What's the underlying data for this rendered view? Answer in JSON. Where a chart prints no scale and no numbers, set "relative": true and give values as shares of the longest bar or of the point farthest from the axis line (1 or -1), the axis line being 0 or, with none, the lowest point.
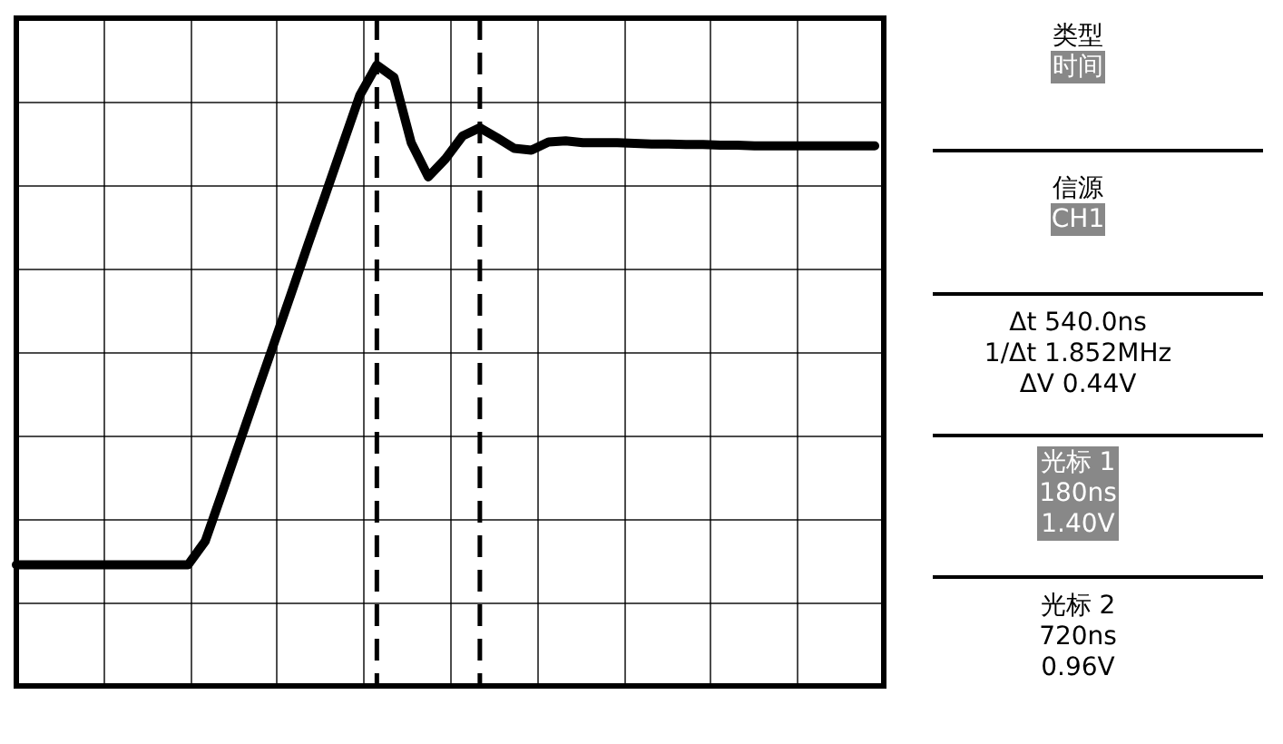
{
  "chart_data": {
    "type": "line",
    "relative": true,
    "color": "#000000",
    "line_style": "solid",
    "grid": true,
    "categories": [
      null,
      null,
      null,
      null,
      null,
      null,
      null,
      null,
      null,
      null,
      null,
      null,
      null,
      null,
      null,
      null,
      null,
      null,
      null,
      null,
      null,
      null,
      null,
      null,
      null,
      null,
      null,
      null,
      null,
      null,
      null,
      null,
      null,
      null,
      null,
      null,
      null,
      null,
      null,
      null,
      null,
      null,
      null,
      null,
      null,
      null,
      null,
      null,
      null,
      null,
      null
    ],
    "values": [
      0.195,
      0.195,
      0.195,
      0.195,
      0.195,
      0.195,
      0.195,
      0.195,
      0.195,
      0.195,
      0.195,
      0.233,
      0.312,
      0.392,
      0.472,
      0.551,
      0.631,
      0.712,
      0.791,
      0.871,
      0.951,
      1,
      0.98,
      0.875,
      0.82,
      0.849,
      0.886,
      0.899,
      0.883,
      0.866,
      0.863,
      0.876,
      0.878,
      0.875,
      0.875,
      0.875,
      0.874,
      0.873,
      0.873,
      0.872,
      0.872,
      0.871,
      0.871,
      0.87,
      0.87,
      0.87,
      0.87,
      0.87,
      0.87,
      0.87,
      0.87
    ],
    "annotations": [
      "类型",
      "时间",
      "信源",
      "CH1",
      "Δt 540.0ns",
      "1/Δt 1.852MHz",
      "ΔV 0.44V",
      "光标 1",
      "180ns",
      "1.40V",
      "光标 2",
      "720ns",
      "0.96V"
    ]
  }
}
